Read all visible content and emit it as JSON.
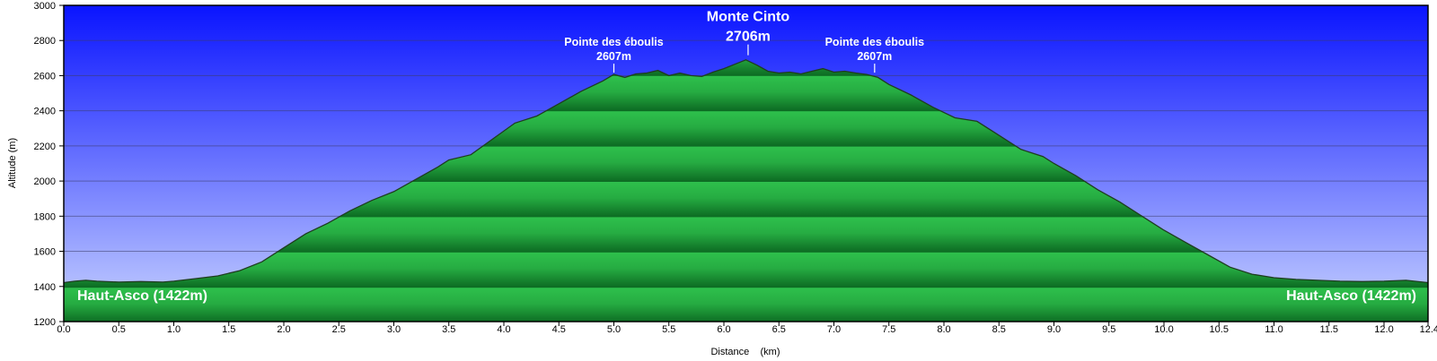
{
  "chart_data": {
    "type": "area",
    "title": "",
    "xlabel": "Distance    (km)",
    "ylabel": "Altitude (m)",
    "xlim": [
      0,
      12.4
    ],
    "ylim": [
      1200,
      3000
    ],
    "grid": true,
    "x_ticks": [
      "0.0",
      "0.5",
      "1.0",
      "1.5",
      "2.0",
      "2.5",
      "3.0",
      "3.5",
      "4.0",
      "4.5",
      "5.0",
      "5.5",
      "6.0",
      "6.5",
      "7.0",
      "7.5",
      "8.0",
      "8.5",
      "9.0",
      "9.5",
      "10.0",
      "10.5",
      "11.0",
      "11.5",
      "12.0",
      "12.4"
    ],
    "y_ticks": [
      "1200",
      "1400",
      "1600",
      "1800",
      "2000",
      "2200",
      "2400",
      "2600",
      "2800",
      "3000"
    ],
    "series": [
      {
        "x": [
          0.0,
          0.1,
          0.2,
          0.3,
          0.5,
          0.7,
          0.9,
          1.0,
          1.2,
          1.4,
          1.6,
          1.8,
          2.0,
          2.2,
          2.4,
          2.6,
          2.8,
          3.0,
          3.2,
          3.4,
          3.5,
          3.7,
          3.9,
          4.1,
          4.3,
          4.5,
          4.7,
          4.9,
          5.0,
          5.1,
          5.2,
          5.3,
          5.4,
          5.5,
          5.6,
          5.7,
          5.8,
          5.9,
          6.0,
          6.1,
          6.2,
          6.3,
          6.4,
          6.5,
          6.6,
          6.7,
          6.8,
          6.9,
          7.0,
          7.1,
          7.2,
          7.3,
          7.4,
          7.5,
          7.7,
          7.9,
          8.1,
          8.3,
          8.5,
          8.7,
          8.9,
          9.0,
          9.2,
          9.4,
          9.6,
          9.8,
          10.0,
          10.2,
          10.4,
          10.6,
          10.8,
          11.0,
          11.2,
          11.4,
          11.6,
          11.8,
          12.0,
          12.2,
          12.4
        ],
        "y": [
          1422,
          1430,
          1435,
          1430,
          1425,
          1428,
          1425,
          1430,
          1445,
          1460,
          1490,
          1540,
          1620,
          1700,
          1760,
          1830,
          1890,
          1940,
          2010,
          2080,
          2120,
          2150,
          2240,
          2330,
          2370,
          2440,
          2510,
          2570,
          2607,
          2590,
          2610,
          2615,
          2630,
          2600,
          2615,
          2600,
          2595,
          2620,
          2640,
          2665,
          2690,
          2660,
          2625,
          2615,
          2620,
          2610,
          2625,
          2640,
          2620,
          2625,
          2615,
          2607,
          2590,
          2550,
          2490,
          2420,
          2360,
          2340,
          2260,
          2180,
          2140,
          2100,
          2030,
          1950,
          1880,
          1800,
          1720,
          1650,
          1580,
          1510,
          1470,
          1450,
          1440,
          1435,
          1430,
          1428,
          1430,
          1435,
          1422
        ]
      }
    ],
    "annotations": [
      {
        "label": "Pointe des éboulis",
        "value": "2607m",
        "x": 5.0,
        "y": 2607
      },
      {
        "label": "Monte Cinto",
        "value": "2706m",
        "x": 6.22,
        "y": 2706
      },
      {
        "label": "Pointe des éboulis",
        "value": "2607m",
        "x": 7.37,
        "y": 2607
      }
    ],
    "corner_labels": {
      "left": "Haut-Asco (1422m)",
      "right": "Haut-Asco (1422m)"
    },
    "colors": {
      "sky_top": "#0a14ff",
      "sky_bottom": "#c9d4ff",
      "area_light": "#2ec04c",
      "area_dark": "#0c6a22",
      "profile_line": "#1f3d1f",
      "grid": "#3c3c6a"
    }
  }
}
